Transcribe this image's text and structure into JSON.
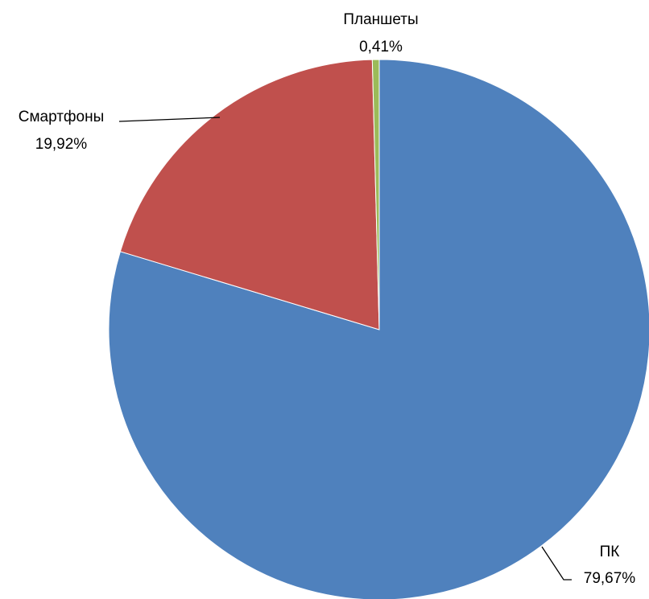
{
  "chart_data": {
    "type": "pie",
    "title": "",
    "start_angle_deg": 0,
    "direction": "clockwise",
    "categories": [
      "ПК",
      "Смартфоны",
      "Планшеты"
    ],
    "values": [
      79.67,
      19.92,
      0.41
    ],
    "labels": [
      {
        "category": "ПК",
        "value_text": "79,67%"
      },
      {
        "category": "Смартфоны",
        "value_text": "19,92%"
      },
      {
        "category": "Планшеты",
        "value_text": "0,41%"
      }
    ],
    "colors": [
      "#4F81BD",
      "#C0504D",
      "#9BBB59"
    ],
    "legend": "none"
  }
}
